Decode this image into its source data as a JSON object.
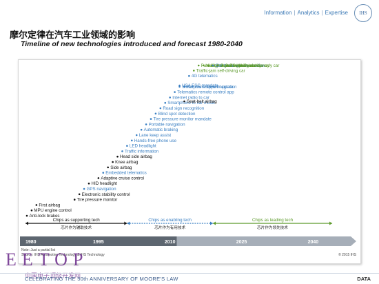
{
  "header": {
    "nav": [
      "Information",
      "Analytics",
      "Expertise"
    ],
    "logo_text": "IHS"
  },
  "title_cn": "摩尔定律在汽车工业领域的影响",
  "subtitle": "Timeline of new technologies introduced and forecast 1980-2040",
  "colors": {
    "supporting": "#111111",
    "enabling": "#3a7fc2",
    "leading": "#5c9a2a",
    "axis_dark": "#5d6670",
    "axis_light": "#a6aeb8"
  },
  "chart_data": {
    "type": "timeline",
    "x_axis": {
      "range": [
        1980,
        2045
      ],
      "ticks": [
        "1980",
        "1995",
        "2010",
        "2025",
        "2040"
      ]
    },
    "eras": [
      {
        "label": "Chips as supporting tech",
        "label_cn": "芯片作为辅助技术",
        "start": 1980,
        "end": 2001,
        "color": "#111111"
      },
      {
        "label": "Chips as enabling tech",
        "label_cn": "芯片作为有用技术",
        "start": 2001,
        "end": 2019,
        "color": "#3a7fc2"
      },
      {
        "label": "Chips as leading tech",
        "label_cn": "芯片作为领先技术",
        "start": 2019,
        "end": 2044,
        "color": "#5c9a2a"
      }
    ],
    "technologies": [
      {
        "year": 1980,
        "name": "Anti-lock brakes",
        "era": "supporting"
      },
      {
        "year": 1981,
        "name": "MPU engine control",
        "era": "supporting"
      },
      {
        "year": 1982,
        "name": "First airbag",
        "era": "supporting"
      },
      {
        "year": 1990,
        "name": "Tire pressure monitor",
        "era": "supporting"
      },
      {
        "year": 1991,
        "name": "Electronic stability control",
        "era": "supporting"
      },
      {
        "year": 1992,
        "name": "GPS navigation",
        "era": "enabling"
      },
      {
        "year": 1993,
        "name": "HID headlight",
        "era": "supporting"
      },
      {
        "year": 1995,
        "name": "Adaptive cruise control",
        "era": "supporting"
      },
      {
        "year": 1996,
        "name": "Embedded telematics",
        "era": "enabling"
      },
      {
        "year": 1997,
        "name": "Side airbag",
        "era": "supporting"
      },
      {
        "year": 1998,
        "name": "Knee airbag",
        "era": "supporting"
      },
      {
        "year": 1999,
        "name": "Head side airbag",
        "era": "supporting"
      },
      {
        "year": 2000,
        "name": "Traffic information",
        "era": "enabling"
      },
      {
        "year": 2001,
        "name": "LED headlight",
        "era": "enabling"
      },
      {
        "year": 2002,
        "name": "Hands-free phone use",
        "era": "enabling"
      },
      {
        "year": 2003,
        "name": "Lane keep assist",
        "era": "enabling"
      },
      {
        "year": 2004,
        "name": "Automatic braking",
        "era": "enabling"
      },
      {
        "year": 2005,
        "name": "Portable navigation",
        "era": "enabling"
      },
      {
        "year": 2006,
        "name": "Tire pressure monitor mandate",
        "era": "enabling"
      },
      {
        "year": 2007,
        "name": "Blind spot detection",
        "era": "enabling"
      },
      {
        "year": 2008,
        "name": "Road sign recognition",
        "era": "enabling"
      },
      {
        "year": 2009,
        "name": "Smartphone to car music",
        "era": "enabling"
      },
      {
        "year": 2010,
        "name": "Internet radio to car",
        "era": "enabling"
      },
      {
        "year": 2011,
        "name": "Telematics remote control app",
        "era": "enabling"
      },
      {
        "year": 2012,
        "name": "Smartphone apps integration",
        "era": "enabling"
      },
      {
        "year": 2012,
        "name": "USA ESC mandate",
        "era": "enabling"
      },
      {
        "year": 2013,
        "name": "Remote software update",
        "era": "enabling"
      },
      {
        "year": 2013,
        "name": "Seat-belt airbag",
        "era": "supporting"
      },
      {
        "year": 2014,
        "name": "4G telematics",
        "era": "enabling"
      },
      {
        "year": 2015,
        "name": "Traffic-jam self-driving car",
        "era": "leading"
      },
      {
        "year": 2016,
        "name": "Partial cyber-security",
        "era": "leading"
      },
      {
        "year": 2017,
        "name": "Valet self-parking car",
        "era": "leading"
      },
      {
        "year": 2018,
        "name": "Highway self-driving car",
        "era": "leading"
      },
      {
        "year": 2019,
        "name": "Car-to-car communication",
        "era": "enabling"
      },
      {
        "year": 2020,
        "name": "Overall cyber-security",
        "era": "leading"
      },
      {
        "year": 2021,
        "name": "Car control redundancy",
        "era": "leading"
      },
      {
        "year": 2022,
        "name": "Driverless car",
        "era": "leading"
      },
      {
        "year": 2025,
        "name": "Driverless-only car",
        "era": "leading"
      }
    ],
    "notes": [
      "Note: Just a partial list",
      "Source: IHS Automotive Technology & IHS Technology"
    ],
    "copyright": "© 2015 IHS"
  },
  "watermark": {
    "main": "EETOP",
    "sub": "中国电子顶级开发网"
  },
  "footer": {
    "text": "CELEBRATING THE 50th ANNIVERSARY OF MOORE'S LAW",
    "right": "DATA"
  }
}
